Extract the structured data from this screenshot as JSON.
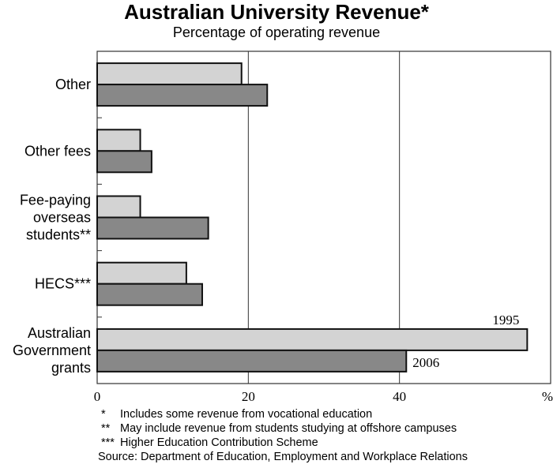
{
  "chart_data": {
    "type": "bar",
    "orientation": "horizontal",
    "title": "Australian University Revenue*",
    "subtitle": "Percentage of operating revenue",
    "categories": [
      [
        "Other"
      ],
      [
        "Other fees"
      ],
      [
        "Fee-paying",
        "overseas",
        "students**"
      ],
      [
        "HECS***"
      ],
      [
        "Australian",
        "Government",
        "grants"
      ]
    ],
    "series": [
      {
        "name": "1995",
        "values": [
          19.1,
          5.7,
          5.7,
          11.8,
          56.9
        ],
        "color": "#d3d3d3"
      },
      {
        "name": "2006",
        "values": [
          22.5,
          7.2,
          14.7,
          13.9,
          40.9
        ],
        "color": "#888888"
      }
    ],
    "xlim": [
      0,
      60
    ],
    "xticks": [
      "0",
      "20",
      "40"
    ],
    "xtick_values": [
      0,
      20,
      40
    ],
    "unit_label": "%",
    "grid": true,
    "legend": "inline-labels-on-last-category"
  },
  "footnotes": [
    {
      "mark": "*",
      "text": "Includes some revenue from vocational education"
    },
    {
      "mark": "**",
      "text": "May include revenue from students studying at offshore campuses"
    },
    {
      "mark": "***",
      "text": "Higher Education Contribution Scheme"
    },
    {
      "mark": "",
      "text": "Source: Department of Education, Employment and Workplace Relations"
    }
  ]
}
